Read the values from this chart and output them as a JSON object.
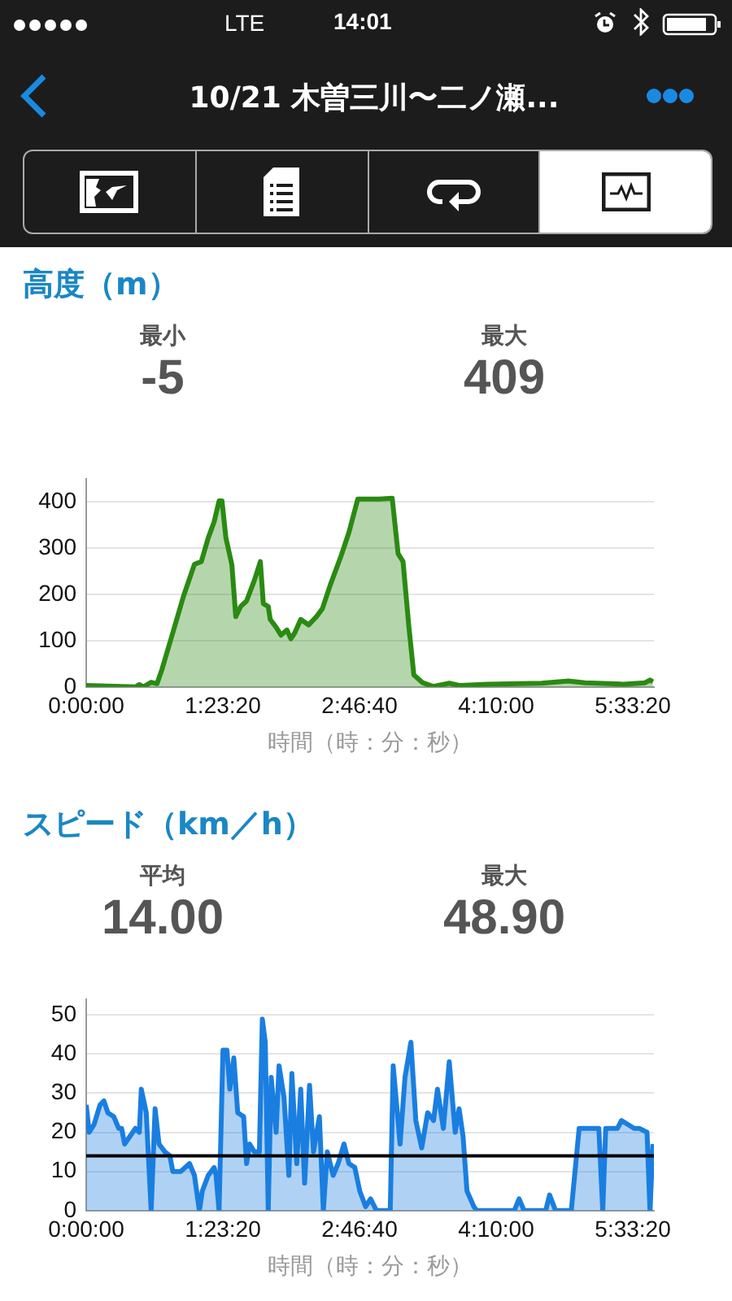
{
  "chart_data": [
    {
      "type": "area",
      "title": "高度（m）",
      "xlabel": "時間（時：分：秒）",
      "color": "#2a8a12",
      "grid": "y",
      "annotations": [
        "10/21 木曽三川〜二ノ瀬...",
        "14:01",
        "LTE",
        "最小",
        "-5",
        "最大",
        "409"
      ],
      "xlim": [
        0,
        5.77
      ],
      "xticks": [
        {
          "value": 0,
          "label": "0:00:00"
        },
        {
          "value": 1.3889,
          "label": "1:23:20"
        },
        {
          "value": 2.7778,
          "label": "2:46:40"
        },
        {
          "value": 4.1667,
          "label": "4:10:00"
        },
        {
          "value": 5.5556,
          "label": "5:33:20"
        }
      ],
      "ylim": [
        0,
        450
      ],
      "yticks": [
        0,
        100,
        200,
        300,
        400
      ],
      "x": [
        0,
        0.5,
        0.54,
        0.58,
        0.66,
        0.72,
        0.77,
        0.88,
        0.99,
        1.1,
        1.17,
        1.24,
        1.3,
        1.35,
        1.38,
        1.42,
        1.48,
        1.52,
        1.57,
        1.63,
        1.71,
        1.77,
        1.8,
        1.85,
        1.87,
        1.93,
        1.98,
        2.04,
        2.08,
        2.12,
        2.18,
        2.26,
        2.34,
        2.4,
        2.48,
        2.59,
        2.67,
        2.76,
        2.98,
        3.11,
        3.17,
        3.22,
        3.28,
        3.33,
        3.42,
        3.53,
        3.69,
        3.8,
        4.08,
        4.63,
        4.9,
        5.07,
        5.46,
        5.68,
        5.73,
        5.76
      ],
      "values": [
        3,
        0,
        5,
        0,
        10,
        7,
        38,
        117,
        197,
        265,
        271,
        322,
        357,
        402,
        402,
        322,
        265,
        152,
        174,
        186,
        231,
        271,
        180,
        174,
        146,
        129,
        112,
        123,
        104,
        117,
        146,
        134,
        152,
        169,
        220,
        283,
        334,
        406,
        406,
        408,
        288,
        271,
        129,
        26,
        9,
        1,
        8,
        3,
        6,
        8,
        13,
        9,
        6,
        9,
        15,
        11
      ]
    },
    {
      "type": "area",
      "title": "スピード（km／h）",
      "xlabel": "時間（時：分：秒）",
      "color": "#1a7ee0",
      "grid": "y",
      "annotations": [
        "平均",
        "14.00",
        "最大",
        "48.90"
      ],
      "ref_lines": [
        {
          "axis": "y",
          "value": 14,
          "color": "#000000"
        }
      ],
      "xlim": [
        0,
        5.77
      ],
      "xticks": [
        {
          "value": 0,
          "label": "0:00:00"
        },
        {
          "value": 1.3889,
          "label": "1:23:20"
        },
        {
          "value": 2.7778,
          "label": "2:46:40"
        },
        {
          "value": 4.1667,
          "label": "4:10:00"
        },
        {
          "value": 5.5556,
          "label": "5:33:20"
        }
      ],
      "ylim": [
        0,
        54
      ],
      "yticks": [
        0,
        10,
        20,
        30,
        40,
        50
      ],
      "x": [
        0,
        0.03,
        0.08,
        0.14,
        0.18,
        0.22,
        0.28,
        0.33,
        0.36,
        0.39,
        0.5,
        0.54,
        0.56,
        0.61,
        0.66,
        0.7,
        0.74,
        0.8,
        0.85,
        0.88,
        0.96,
        1.05,
        1.1,
        1.15,
        1.18,
        1.24,
        1.3,
        1.32,
        1.35,
        1.39,
        1.43,
        1.46,
        1.5,
        1.54,
        1.6,
        1.63,
        1.66,
        1.71,
        1.76,
        1.79,
        1.82,
        1.85,
        1.88,
        1.93,
        1.96,
        2.01,
        2.06,
        2.09,
        2.14,
        2.18,
        2.22,
        2.27,
        2.31,
        2.37,
        2.41,
        2.45,
        2.51,
        2.56,
        2.62,
        2.67,
        2.73,
        2.78,
        2.84,
        2.89,
        2.95,
        3.09,
        3.12,
        3.19,
        3.24,
        3.3,
        3.35,
        3.41,
        3.47,
        3.53,
        3.57,
        3.63,
        3.69,
        3.75,
        3.79,
        3.83,
        3.87,
        3.94,
        3.97,
        4.35,
        4.4,
        4.45,
        4.67,
        4.71,
        4.77,
        4.93,
        5.01,
        5.13,
        5.21,
        5.25,
        5.28,
        5.4,
        5.44,
        5.57,
        5.62,
        5.7,
        5.73,
        5.76
      ],
      "values": [
        27,
        20,
        22,
        27,
        28,
        25,
        24,
        21,
        21,
        17,
        21,
        20,
        31,
        25,
        0,
        26,
        17,
        15,
        14,
        10,
        10,
        12,
        9,
        0,
        5,
        9,
        11,
        9,
        0,
        41,
        41,
        31,
        39,
        25,
        24,
        12,
        17,
        15,
        15,
        48.9,
        43,
        0,
        34,
        20,
        37,
        29,
        9,
        35,
        12,
        31,
        7,
        32,
        15,
        24,
        0,
        15,
        9,
        12,
        17,
        12,
        11,
        5,
        1,
        3,
        0,
        0,
        37,
        17,
        34,
        43,
        23,
        16,
        25,
        23,
        31,
        21,
        38,
        20,
        26,
        19,
        5,
        1,
        0,
        0,
        3,
        0,
        0,
        4,
        0,
        0,
        21,
        21,
        21,
        0,
        21,
        21,
        23,
        21,
        21,
        20,
        0,
        17
      ]
    }
  ]
}
